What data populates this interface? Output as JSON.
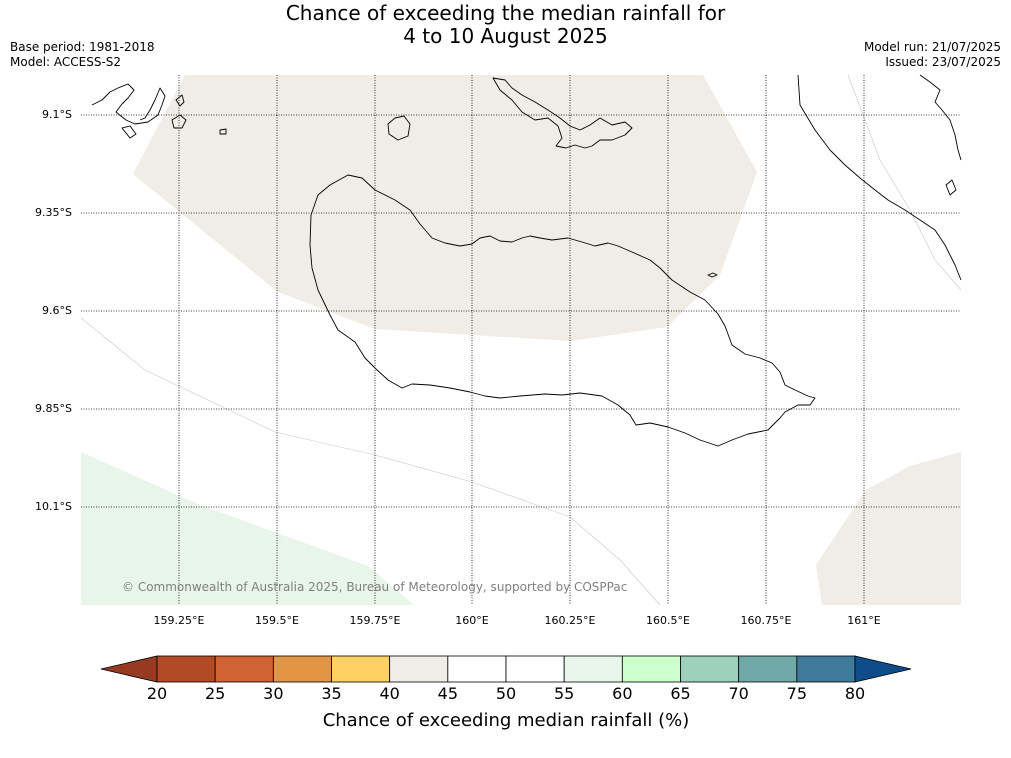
{
  "title_line1": "Chance of exceeding the median rainfall for",
  "title_line2": "4 to 10 August 2025",
  "base_period": "Base period: 1981-2018",
  "model": "Model: ACCESS-S2",
  "model_run": "Model run: 21/07/2025",
  "issued": "Issued: 23/07/2025",
  "latitude_labels": [
    "9.1°S",
    "9.35°S",
    "9.6°S",
    "9.85°S",
    "10.1°S"
  ],
  "longitude_labels": [
    "159.25°E",
    "159.5°E",
    "159.75°E",
    "160°E",
    "160.25°E",
    "160.5°E",
    "160.75°E",
    "161°E"
  ],
  "copyright": "© Commonwealth of Australia 2025, Bureau of Meteorology, supported by COSPPac",
  "colorbar": {
    "title": "Chance of exceeding median rainfall (%)",
    "ticks": [
      "20",
      "25",
      "30",
      "35",
      "40",
      "45",
      "50",
      "55",
      "60",
      "65",
      "70",
      "75",
      "80"
    ],
    "colors": [
      "#b24a25",
      "#cf6334",
      "#e29545",
      "#ffd066",
      "#f0ece6",
      "#ffffff",
      "#ffffff",
      "#e8f5e9",
      "#ccffcc",
      "#9dd1bd",
      "#71a8a8",
      "#3e7a99"
    ],
    "under_color": "#963a22",
    "over_color": "#0f4c8a"
  },
  "shading_colors": {
    "band_40_45": "#f0ece6",
    "band_55_60": "#e8f5e9"
  }
}
